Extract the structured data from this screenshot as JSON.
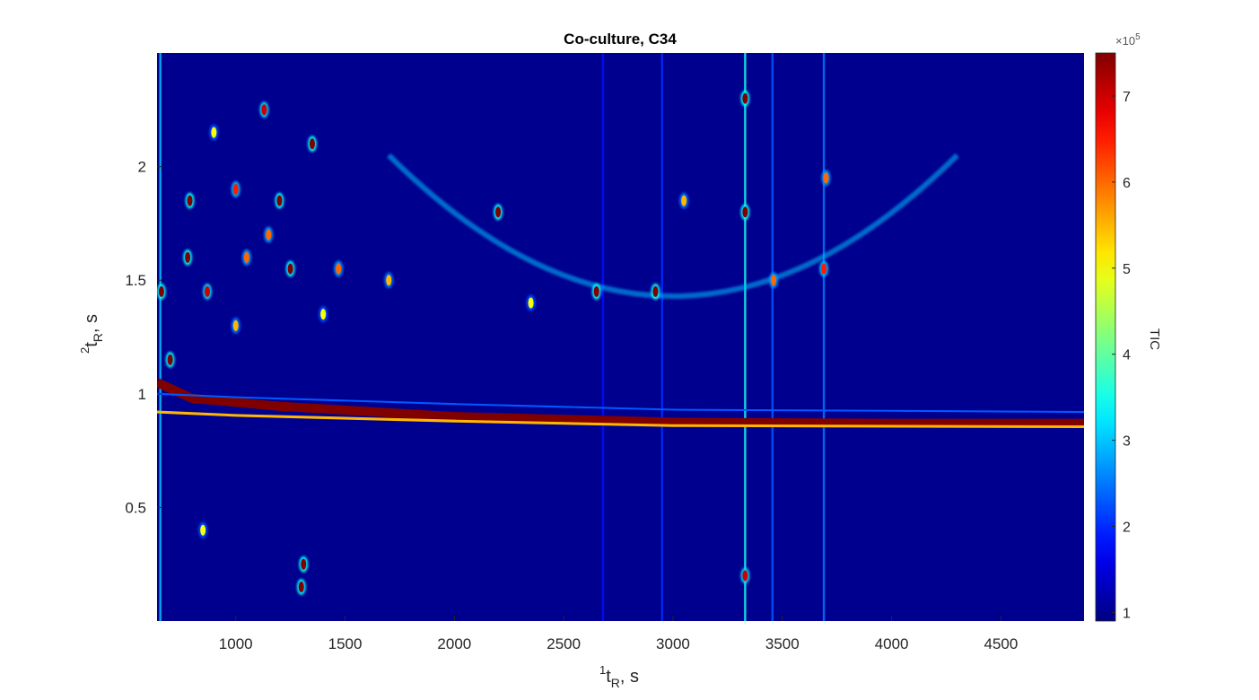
{
  "chart_data": {
    "type": "heatmap",
    "title": "Co-culture, C34",
    "xlabel": {
      "superscript": "1",
      "main": "t",
      "subscript": "R",
      "suffix": ", s"
    },
    "ylabel": {
      "superscript": "2",
      "main": "t",
      "subscript": "R",
      "suffix": ", s"
    },
    "xlim": [
      640,
      4880
    ],
    "ylim": [
      0,
      2.5
    ],
    "x_ticks": [
      "1000",
      "1500",
      "2000",
      "2500",
      "3000",
      "3500",
      "4000",
      "4500"
    ],
    "x_tick_values": [
      1000,
      1500,
      2000,
      2500,
      3000,
      3500,
      4000,
      4500
    ],
    "y_ticks": [
      "0.5",
      "1",
      "1.5",
      "2"
    ],
    "y_tick_values": [
      0.5,
      1,
      1.5,
      2
    ],
    "colorbar": {
      "label": "TIC",
      "exponent_prefix": "×10",
      "exponent": "5",
      "ticks": [
        "1",
        "2",
        "3",
        "4",
        "5",
        "6",
        "7"
      ],
      "tick_values": [
        1,
        2,
        3,
        4,
        5,
        6,
        7
      ],
      "range": [
        0.9,
        7.5
      ],
      "colormap": "jet"
    },
    "background_level": 1.0,
    "bands": [
      {
        "name": "main-band",
        "points": [
          [
            640,
            1.05
          ],
          [
            800,
            0.98
          ],
          [
            1200,
            0.945
          ],
          [
            2000,
            0.9
          ],
          [
            3000,
            0.875
          ],
          [
            4000,
            0.87
          ],
          [
            4880,
            0.87
          ]
        ],
        "width": 0.04,
        "level": 7.5
      },
      {
        "name": "edge-band",
        "points": [
          [
            640,
            0.92
          ],
          [
            1000,
            0.905
          ],
          [
            2000,
            0.88
          ],
          [
            3000,
            0.86
          ],
          [
            4880,
            0.855
          ]
        ],
        "width": 0.012,
        "level": 5.5
      },
      {
        "name": "faint-band",
        "points": [
          [
            640,
            1.0
          ],
          [
            1000,
            0.985
          ],
          [
            2000,
            0.955
          ],
          [
            3000,
            0.93
          ],
          [
            4000,
            0.925
          ],
          [
            4880,
            0.92
          ]
        ],
        "width": 0.008,
        "level": 2.3
      }
    ],
    "arc": {
      "center_x": 3000,
      "y": 1.32,
      "half_width_x": 1300,
      "level": 3.0
    },
    "vertical_streaks": [
      {
        "x": 3330,
        "level": 3.5
      },
      {
        "x": 3455,
        "level": 2.3
      },
      {
        "x": 3690,
        "level": 2.5
      },
      {
        "x": 2950,
        "level": 2.0
      },
      {
        "x": 2680,
        "level": 1.8
      },
      {
        "x": 655,
        "level": 3.0
      }
    ],
    "peaks": [
      {
        "x": 700,
        "y": 1.15,
        "value": 7.5
      },
      {
        "x": 660,
        "y": 1.45,
        "value": 7.5
      },
      {
        "x": 780,
        "y": 1.6,
        "value": 7.5
      },
      {
        "x": 790,
        "y": 1.85,
        "value": 7.5
      },
      {
        "x": 870,
        "y": 1.45,
        "value": 7.0
      },
      {
        "x": 1000,
        "y": 1.9,
        "value": 6.5
      },
      {
        "x": 1130,
        "y": 2.25,
        "value": 7.0
      },
      {
        "x": 1050,
        "y": 1.6,
        "value": 6.0
      },
      {
        "x": 1200,
        "y": 1.85,
        "value": 7.5
      },
      {
        "x": 1350,
        "y": 2.1,
        "value": 7.5
      },
      {
        "x": 1250,
        "y": 1.55,
        "value": 7.5
      },
      {
        "x": 1300,
        "y": 0.15,
        "value": 7.5
      },
      {
        "x": 1310,
        "y": 0.25,
        "value": 7.5
      },
      {
        "x": 1470,
        "y": 1.55,
        "value": 6.0
      },
      {
        "x": 1700,
        "y": 1.5,
        "value": 5.5
      },
      {
        "x": 2200,
        "y": 1.8,
        "value": 7.5
      },
      {
        "x": 2650,
        "y": 1.45,
        "value": 7.5
      },
      {
        "x": 2920,
        "y": 1.45,
        "value": 7.5
      },
      {
        "x": 3330,
        "y": 1.8,
        "value": 7.5
      },
      {
        "x": 3330,
        "y": 2.3,
        "value": 7.5
      },
      {
        "x": 3330,
        "y": 0.2,
        "value": 7.0
      },
      {
        "x": 3460,
        "y": 1.5,
        "value": 6.0
      },
      {
        "x": 3690,
        "y": 1.55,
        "value": 6.5
      },
      {
        "x": 3700,
        "y": 1.95,
        "value": 6.0
      },
      {
        "x": 850,
        "y": 0.4,
        "value": 5.0
      },
      {
        "x": 1000,
        "y": 1.3,
        "value": 5.5
      },
      {
        "x": 1150,
        "y": 1.7,
        "value": 6.0
      },
      {
        "x": 1400,
        "y": 1.35,
        "value": 5.0
      },
      {
        "x": 900,
        "y": 2.15,
        "value": 5.0
      },
      {
        "x": 2350,
        "y": 1.4,
        "value": 5.0
      },
      {
        "x": 3050,
        "y": 1.85,
        "value": 5.5
      }
    ]
  }
}
